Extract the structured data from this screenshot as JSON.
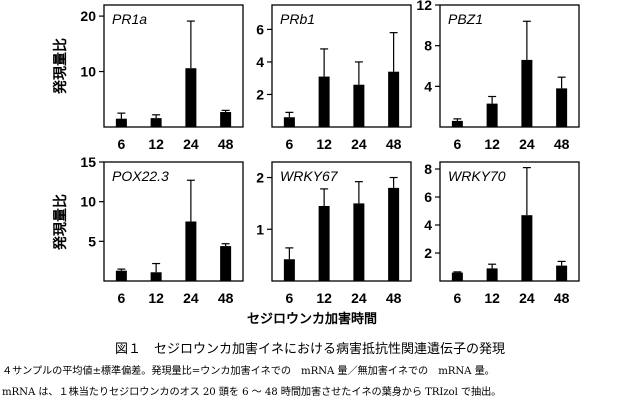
{
  "chart_data": [
    {
      "type": "bar",
      "title": "PR1a",
      "categories": [
        "6",
        "12",
        "24",
        "48"
      ],
      "values": [
        1.5,
        1.6,
        10.6,
        2.7
      ],
      "errors": [
        1.0,
        0.6,
        8.5,
        0.3
      ],
      "ylim": [
        0,
        22
      ],
      "yticks": [
        10,
        20
      ],
      "ylabel": "発現量比"
    },
    {
      "type": "bar",
      "title": "PRb1",
      "categories": [
        "6",
        "12",
        "24",
        "48"
      ],
      "values": [
        0.6,
        3.1,
        2.6,
        3.4
      ],
      "errors": [
        0.3,
        1.7,
        1.4,
        2.4
      ],
      "ylim": [
        0,
        7.5
      ],
      "yticks": [
        2,
        4,
        6
      ]
    },
    {
      "type": "bar",
      "title": "PBZ1",
      "categories": [
        "6",
        "12",
        "24",
        "48"
      ],
      "values": [
        0.6,
        2.3,
        6.6,
        3.8
      ],
      "errors": [
        0.2,
        0.7,
        3.8,
        1.1
      ],
      "ylim": [
        0,
        12
      ],
      "yticks": [
        4,
        8,
        12
      ]
    },
    {
      "type": "bar",
      "title": "POX22.3",
      "categories": [
        "6",
        "12",
        "24",
        "48"
      ],
      "values": [
        1.3,
        1.1,
        7.5,
        4.4
      ],
      "errors": [
        0.2,
        1.1,
        5.2,
        0.3
      ],
      "ylim": [
        0,
        15
      ],
      "yticks": [
        5,
        10,
        15
      ],
      "ylabel": "発現量比"
    },
    {
      "type": "bar",
      "title": "WRKY67",
      "categories": [
        "6",
        "12",
        "24",
        "48"
      ],
      "values": [
        0.42,
        1.45,
        1.5,
        1.8
      ],
      "errors": [
        0.22,
        0.33,
        0.42,
        0.2
      ],
      "ylim": [
        0,
        2.3
      ],
      "yticks": [
        1,
        2
      ]
    },
    {
      "type": "bar",
      "title": "WRKY70",
      "categories": [
        "6",
        "12",
        "24",
        "48"
      ],
      "values": [
        0.6,
        0.9,
        4.7,
        1.1
      ],
      "errors": [
        0.05,
        0.3,
        3.4,
        0.3
      ],
      "ylim": [
        0,
        8.5
      ],
      "yticks": [
        2,
        4,
        6,
        8
      ]
    }
  ],
  "xlabel": "セジロウンカ加害時間",
  "caption": {
    "title": "図１　セジロウンカ加害イネにおける病害抵抗性関連遺伝子の発現",
    "note_line1": "４サンプルの平均値±標準偏差。発現量比=ウンカ加害イネでの　mRNA 量／無加害イネでの　mRNA 量。",
    "note_line2": "mRNA は、１株当たりセジロウンカのオス 20 頭を 6 ～ 48 時間加害させたイネの葉身から TRIzol で抽出。"
  }
}
